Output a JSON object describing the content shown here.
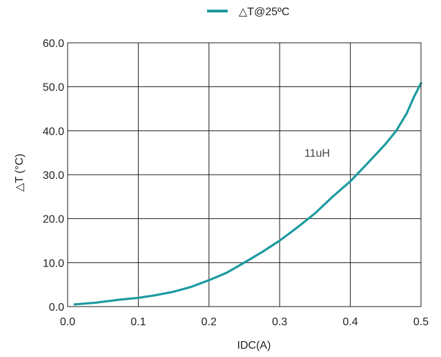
{
  "chart_data": {
    "type": "line",
    "title": "",
    "xlabel": "IDC(A)",
    "ylabel": "△T (°C)",
    "xlim": [
      0.0,
      0.5
    ],
    "ylim": [
      0.0,
      60.0
    ],
    "x_ticks": [
      0.0,
      0.1,
      0.2,
      0.3,
      0.4,
      0.5
    ],
    "y_ticks": [
      0.0,
      10.0,
      20.0,
      30.0,
      40.0,
      50.0,
      60.0
    ],
    "x_tick_labels": [
      "0.0",
      "0.1",
      "0.2",
      "0.3",
      "0.4",
      "0.5"
    ],
    "y_tick_labels": [
      "0.0",
      "10.0",
      "20.0",
      "30.0",
      "40.0",
      "50.0",
      "60.0"
    ],
    "grid": true,
    "legend_position": "top-center",
    "series": [
      {
        "name": "△T@25ºC",
        "color": "#1b9aa0",
        "x": [
          0.01,
          0.04,
          0.07,
          0.1,
          0.125,
          0.15,
          0.175,
          0.2,
          0.225,
          0.25,
          0.275,
          0.3,
          0.325,
          0.35,
          0.375,
          0.4,
          0.425,
          0.45,
          0.465,
          0.48,
          0.49,
          0.5
        ],
        "y": [
          0.5,
          0.9,
          1.5,
          2.0,
          2.6,
          3.4,
          4.5,
          6.0,
          7.7,
          10.0,
          12.4,
          15.0,
          18.0,
          21.2,
          25.0,
          28.5,
          32.7,
          37.0,
          40.0,
          44.0,
          47.7,
          50.8
        ]
      }
    ],
    "annotations": [
      {
        "text": "11uH",
        "x": 0.335,
        "y": 35.0
      }
    ]
  }
}
